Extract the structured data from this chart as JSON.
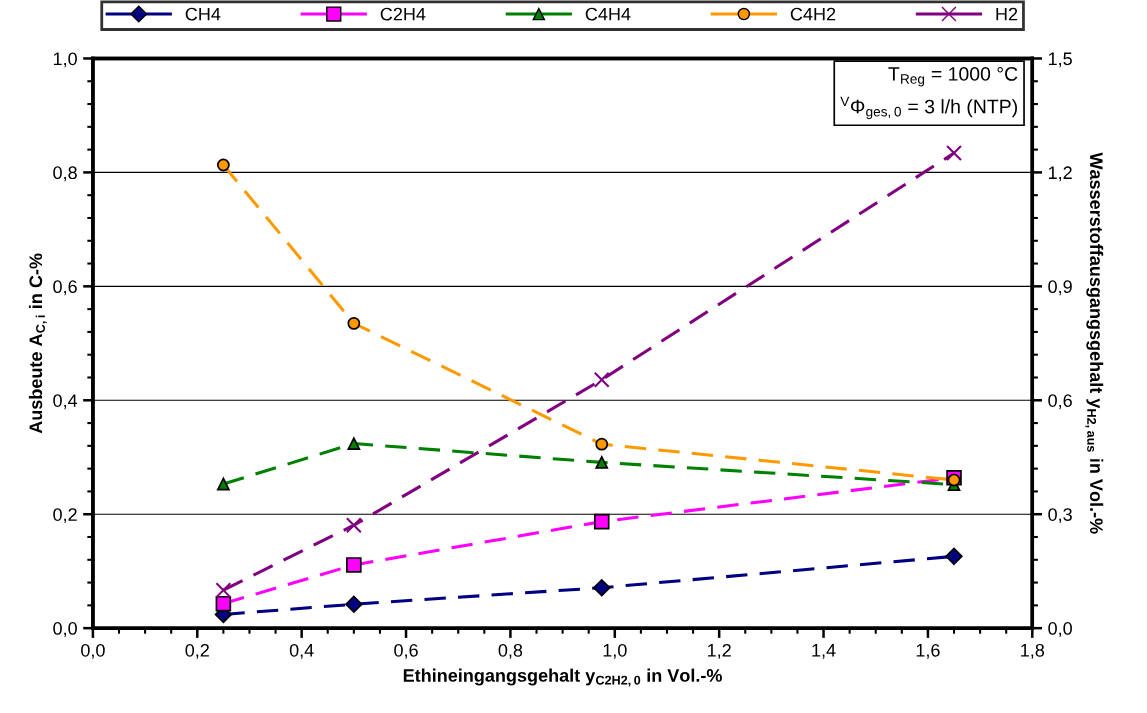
{
  "chart_data": {
    "type": "line",
    "xlabel": "Ethineingangsgehalt y$_{C2H2,0}$ in Vol.-%",
    "ylabel": "Ausbeute A$_{C,i}$ in C-%",
    "y2label": "Wasserstoffausgangsgehalt y$_{H2,aus}$ in Vol.-%",
    "annotations": [
      "T$_{Reg}$ = 1000 °C\n$^{V}$Φ$_{ges,0}$ = 3 l/h (NTP)"
    ],
    "x": [
      0.25,
      0.5,
      0.975,
      1.65
    ],
    "series": [
      {
        "name": "CH4",
        "color": "#000080",
        "marker": "diamond",
        "values": [
          0.024,
          0.042,
          0.071,
          0.126
        ]
      },
      {
        "name": "C2H4",
        "color": "#ff00ff",
        "marker": "square",
        "values": [
          0.043,
          0.111,
          0.187,
          0.264
        ]
      },
      {
        "name": "C4H4",
        "color": "#008000",
        "marker": "triangle",
        "values": [
          0.253,
          0.324,
          0.291,
          0.252
        ]
      },
      {
        "name": "C4H2",
        "color": "#ff9900",
        "marker": "circle",
        "values": [
          0.813,
          0.535,
          0.323,
          0.26
        ]
      },
      {
        "name": "H2",
        "color": "#800080",
        "marker": "cross",
        "axis": "y2",
        "values": [
          0.1,
          0.271,
          0.654,
          1.251
        ]
      }
    ],
    "line_style": "dashed",
    "xlim": [
      0,
      1.8
    ],
    "xticks": [
      {
        "value": 0,
        "label": "0,0"
      },
      {
        "value": 0.2,
        "label": "0,2"
      },
      {
        "value": 0.4,
        "label": "0,4"
      },
      {
        "value": 0.6,
        "label": "0,6"
      },
      {
        "value": 0.8,
        "label": "0,8"
      },
      {
        "value": 1.0,
        "label": "1,0"
      },
      {
        "value": 1.2,
        "label": "1,2"
      },
      {
        "value": 1.4,
        "label": "1,4"
      },
      {
        "value": 1.6,
        "label": "1,6"
      },
      {
        "value": 1.8,
        "label": "1,8"
      }
    ],
    "ylim": [
      0,
      1.0
    ],
    "yticks": [
      {
        "value": 0,
        "label": "0,0"
      },
      {
        "value": 0.2,
        "label": "0,2"
      },
      {
        "value": 0.4,
        "label": "0,4"
      },
      {
        "value": 0.6,
        "label": "0,6"
      },
      {
        "value": 0.8,
        "label": "0,8"
      },
      {
        "value": 1.0,
        "label": "1,0"
      }
    ],
    "y2lim": [
      0,
      1.5
    ],
    "y2ticks": [
      {
        "value": 0,
        "label": "0,0"
      },
      {
        "value": 0.3,
        "label": "0,3"
      },
      {
        "value": 0.6,
        "label": "0,6"
      },
      {
        "value": 0.9,
        "label": "0,9"
      },
      {
        "value": 1.2,
        "label": "1,2"
      },
      {
        "value": 1.5,
        "label": "1,5"
      }
    ],
    "grid": "y",
    "legend": "top"
  }
}
